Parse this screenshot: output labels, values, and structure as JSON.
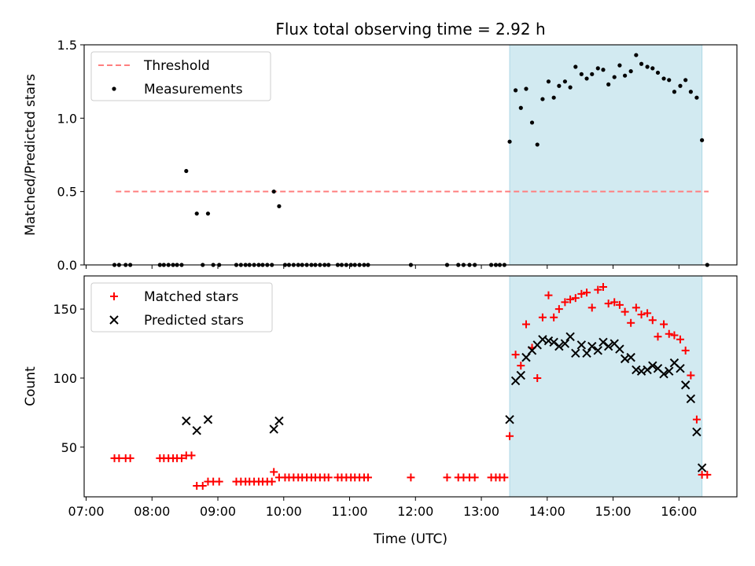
{
  "chart_data": {
    "title": "Flux total observing time = 2.92 h",
    "xlabel": "Time (UTC)",
    "xlim": [
      6.97,
      16.88
    ],
    "x_ticks": [
      7,
      8,
      9,
      10,
      11,
      12,
      13,
      14,
      15,
      16
    ],
    "x_tick_labels": [
      "07:00",
      "08:00",
      "09:00",
      "10:00",
      "11:00",
      "12:00",
      "13:00",
      "14:00",
      "15:00",
      "16:00"
    ],
    "highlight_span": [
      13.43,
      16.35
    ],
    "highlight_color": "#add8e6",
    "panels": [
      {
        "type": "scatter",
        "ylabel": "Matched/Predicted stars",
        "ylim": [
          0,
          1.5
        ],
        "y_ticks": [
          0.0,
          0.5,
          1.0,
          1.5
        ],
        "y_tick_labels": [
          "0.0",
          "0.5",
          "1.0",
          "1.5"
        ],
        "threshold": {
          "name": "Threshold",
          "value": 0.5,
          "x_range": [
            7.45,
            16.45
          ],
          "color": "#ff7f7f"
        },
        "legend": [
          "Threshold",
          "Measurements"
        ],
        "series": [
          {
            "name": "Measurements",
            "color": "#000000",
            "x": [
              7.43,
              7.5,
              7.6,
              7.67,
              8.12,
              8.18,
              8.25,
              8.32,
              8.38,
              8.45,
              8.52,
              8.68,
              8.77,
              8.85,
              8.93,
              9.02,
              9.28,
              9.35,
              9.42,
              9.48,
              9.55,
              9.62,
              9.68,
              9.75,
              9.82,
              9.85,
              9.93,
              10.02,
              10.08,
              10.15,
              10.22,
              10.28,
              10.35,
              10.42,
              10.48,
              10.55,
              10.62,
              10.68,
              10.82,
              10.88,
              10.95,
              11.02,
              11.08,
              11.15,
              11.22,
              11.28,
              11.93,
              12.48,
              12.65,
              12.73,
              12.82,
              12.9,
              13.15,
              13.22,
              13.28,
              13.35,
              13.43,
              13.52,
              13.6,
              13.68,
              13.77,
              13.85,
              13.93,
              14.02,
              14.1,
              14.18,
              14.27,
              14.35,
              14.43,
              14.52,
              14.6,
              14.68,
              14.77,
              14.85,
              14.93,
              15.02,
              15.1,
              15.18,
              15.27,
              15.35,
              15.43,
              15.52,
              15.6,
              15.68,
              15.77,
              15.85,
              15.93,
              16.02,
              16.1,
              16.18,
              16.27,
              16.35,
              16.43
            ],
            "y": [
              0,
              0,
              0,
              0,
              0,
              0,
              0,
              0,
              0,
              0,
              0.64,
              0.35,
              0,
              0.35,
              0,
              0,
              0,
              0,
              0,
              0,
              0,
              0,
              0,
              0,
              0,
              0.5,
              0.4,
              0,
              0,
              0,
              0,
              0,
              0,
              0,
              0,
              0,
              0,
              0,
              0,
              0,
              0,
              0,
              0,
              0,
              0,
              0,
              0,
              0,
              0,
              0,
              0,
              0,
              0,
              0,
              0,
              0,
              0.84,
              1.19,
              1.07,
              1.2,
              0.97,
              0.82,
              1.13,
              1.25,
              1.14,
              1.22,
              1.25,
              1.21,
              1.35,
              1.3,
              1.27,
              1.3,
              1.34,
              1.33,
              1.23,
              1.28,
              1.36,
              1.29,
              1.32,
              1.43,
              1.37,
              1.35,
              1.34,
              1.31,
              1.27,
              1.26,
              1.18,
              1.22,
              1.26,
              1.18,
              1.14,
              0.85,
              0
            ]
          }
        ]
      },
      {
        "type": "scatter",
        "ylabel": "Count",
        "ylim": [
          14,
          174
        ],
        "y_ticks": [
          50,
          100,
          150
        ],
        "y_tick_labels": [
          "50",
          "100",
          "150"
        ],
        "legend": [
          "Matched stars",
          "Predicted stars"
        ],
        "series": [
          {
            "name": "Matched stars",
            "marker": "+",
            "color": "#ff0000",
            "x": [
              7.43,
              7.5,
              7.6,
              7.67,
              8.12,
              8.18,
              8.25,
              8.32,
              8.38,
              8.45,
              8.52,
              8.6,
              8.68,
              8.77,
              8.85,
              8.93,
              9.02,
              9.28,
              9.35,
              9.42,
              9.48,
              9.55,
              9.62,
              9.68,
              9.75,
              9.82,
              9.85,
              9.93,
              10.02,
              10.08,
              10.15,
              10.22,
              10.28,
              10.35,
              10.42,
              10.48,
              10.55,
              10.62,
              10.68,
              10.82,
              10.88,
              10.95,
              11.02,
              11.08,
              11.15,
              11.22,
              11.28,
              11.93,
              12.48,
              12.65,
              12.73,
              12.82,
              12.9,
              13.15,
              13.22,
              13.28,
              13.35,
              13.43,
              13.52,
              13.6,
              13.68,
              13.77,
              13.85,
              13.93,
              14.02,
              14.1,
              14.18,
              14.27,
              14.35,
              14.43,
              14.52,
              14.6,
              14.68,
              14.77,
              14.85,
              14.93,
              15.02,
              15.1,
              15.18,
              15.27,
              15.35,
              15.43,
              15.52,
              15.6,
              15.68,
              15.77,
              15.85,
              15.93,
              16.02,
              16.1,
              16.18,
              16.27,
              16.35,
              16.43
            ],
            "y": [
              42,
              42,
              42,
              42,
              42,
              42,
              42,
              42,
              42,
              42,
              44,
              44,
              22,
              22,
              25,
              25,
              25,
              25,
              25,
              25,
              25,
              25,
              25,
              25,
              25,
              25,
              32,
              28,
              28,
              28,
              28,
              28,
              28,
              28,
              28,
              28,
              28,
              28,
              28,
              28,
              28,
              28,
              28,
              28,
              28,
              28,
              28,
              28,
              28,
              28,
              28,
              28,
              28,
              28,
              28,
              28,
              28,
              58,
              117,
              109,
              139,
              122,
              100,
              144,
              160,
              144,
              150,
              155,
              157,
              158,
              161,
              162,
              151,
              164,
              166,
              154,
              155,
              153,
              148,
              140,
              151,
              146,
              147,
              142,
              130,
              139,
              132,
              131,
              128,
              120,
              102,
              70,
              30,
              30
            ]
          },
          {
            "name": "Predicted stars",
            "marker": "x",
            "color": "#000000",
            "x": [
              8.52,
              8.68,
              8.85,
              9.85,
              9.93,
              13.43,
              13.52,
              13.6,
              13.68,
              13.77,
              13.85,
              13.93,
              14.02,
              14.1,
              14.18,
              14.27,
              14.35,
              14.43,
              14.52,
              14.6,
              14.68,
              14.77,
              14.85,
              14.93,
              15.02,
              15.1,
              15.18,
              15.27,
              15.35,
              15.43,
              15.52,
              15.6,
              15.68,
              15.77,
              15.85,
              15.93,
              16.02,
              16.1,
              16.18,
              16.27,
              16.35
            ],
            "y": [
              69,
              62,
              70,
              63,
              69,
              70,
              98,
              102,
              115,
              120,
              124,
              128,
              127,
              126,
              123,
              125,
              130,
              118,
              124,
              118,
              123,
              120,
              126,
              123,
              125,
              121,
              114,
              115,
              106,
              105,
              106,
              109,
              107,
              103,
              105,
              111,
              107,
              95,
              85,
              61,
              35
            ]
          }
        ]
      }
    ]
  }
}
